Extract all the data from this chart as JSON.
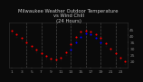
{
  "title": "Milwaukee Weather Outdoor Temperature\nvs Wind Chill\n(24 Hours)",
  "background_color": "#0a0a0a",
  "plot_bg_color": "#0a0a0a",
  "grid_color": "#555555",
  "title_color": "#cccccc",
  "tick_color": "#888888",
  "hours": [
    1,
    2,
    3,
    4,
    5,
    6,
    7,
    8,
    9,
    10,
    11,
    12,
    13,
    14,
    15,
    16,
    17,
    18,
    19,
    20,
    21,
    22,
    23,
    24
  ],
  "temp_red": [
    44,
    41,
    38,
    35,
    32,
    29,
    26,
    24,
    22,
    21,
    23,
    27,
    33,
    39,
    43,
    44,
    43,
    41,
    38,
    34,
    30,
    26,
    23,
    20
  ],
  "wind_blue": [
    null,
    null,
    null,
    null,
    null,
    null,
    null,
    null,
    null,
    null,
    null,
    null,
    29,
    35,
    39,
    42,
    41,
    38,
    35,
    null,
    null,
    null,
    null,
    null
  ],
  "black_series": [
    42,
    39,
    36,
    33,
    30,
    27,
    24,
    22,
    20,
    19,
    21,
    25,
    31,
    37,
    41,
    42,
    41,
    39,
    36,
    32,
    28,
    24,
    21,
    18
  ],
  "ylim": [
    15,
    50
  ],
  "xlim": [
    0.5,
    24.5
  ],
  "grid_x_positions": [
    4,
    7,
    10,
    13,
    16,
    19,
    22
  ],
  "marker_size": 1.5,
  "title_fontsize": 3.8,
  "tick_fontsize": 3.2,
  "yticks": [
    20,
    25,
    30,
    35,
    40,
    45
  ],
  "xticks": [
    1,
    3,
    5,
    7,
    9,
    11,
    13,
    15,
    17,
    19,
    21,
    23
  ]
}
